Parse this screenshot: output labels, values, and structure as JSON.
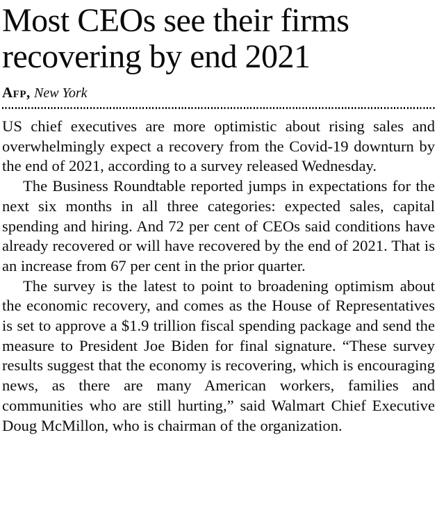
{
  "article": {
    "headline": "Most CEOs see their firms recovering by end 2021",
    "byline": {
      "source": "Afp,",
      "location": "New York"
    },
    "paragraphs": [
      "US chief executives are more optimistic about rising sales and overwhelmingly expect a recovery from the Covid-19 downturn by the end of 2021, according to a survey released Wednesday.",
      "The Business Roundtable reported jumps in expectations for the next six months in all three categories: expected sales, capital spending and hiring. And 72 per cent of CEOs said conditions have already recovered or will have recovered by the end of 2021. That is an increase from 67 per cent in the prior quarter.",
      "The survey is the latest to point to broadening optimism about the economic recovery, and comes as the House of Representatives is set to approve a $1.9 trillion fiscal spending package and send the measure to President Joe Biden for final signature. “These survey results suggest that the economy is recovering, which is encouraging news, as there are many American workers, families and communities who are still hurting,” said Walmart Chief Executive Doug McMillon, who is chairman of the organization."
    ]
  },
  "colors": {
    "text": "#0a0a0a",
    "background": "#ffffff"
  }
}
